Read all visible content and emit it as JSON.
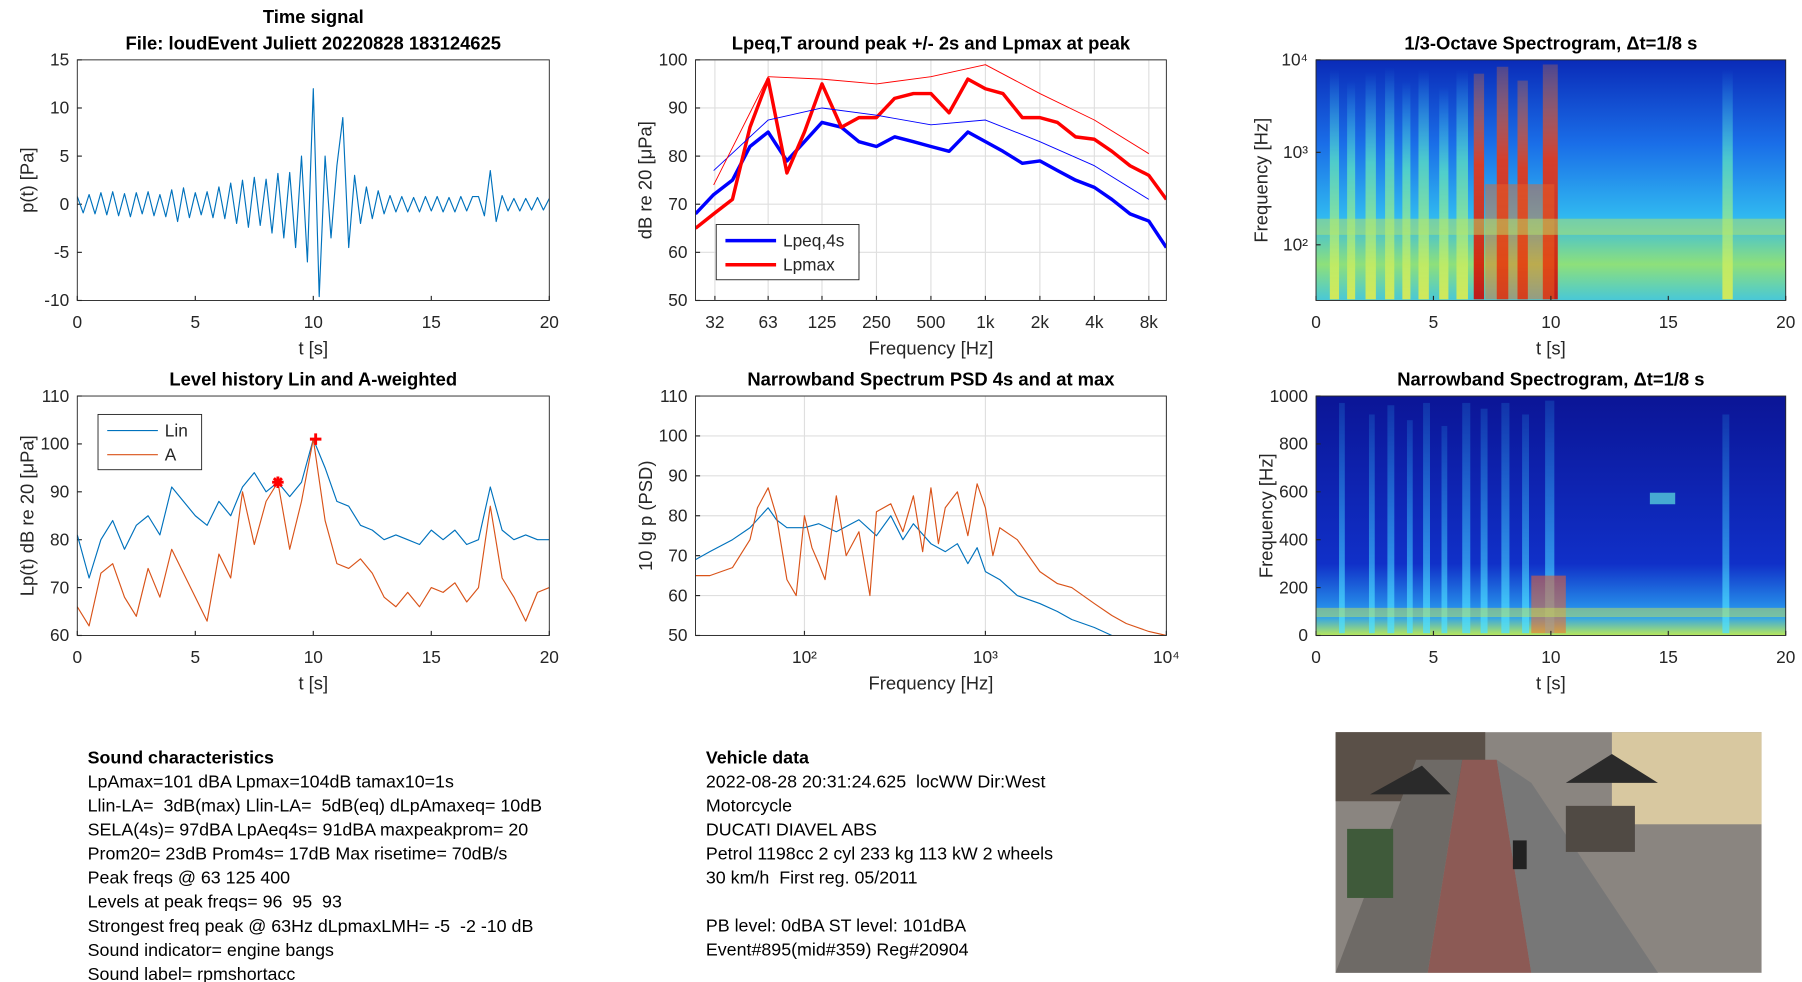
{
  "chart_data": [
    {
      "type": "line",
      "title": "Time signal",
      "subtitle": "File: loudEvent Juliett 20220828 183124625",
      "xlabel": "t [s]",
      "ylabel": "p(t) [Pa]",
      "xlim": [
        0,
        20
      ],
      "ylim": [
        -10,
        15
      ],
      "xticks": [
        0,
        5,
        10,
        15,
        20
      ],
      "yticks": [
        -10,
        -5,
        0,
        5,
        10,
        15
      ],
      "grid": false,
      "x": [
        0,
        0.25,
        0.5,
        0.75,
        1,
        1.25,
        1.5,
        1.75,
        2,
        2.25,
        2.5,
        2.75,
        3,
        3.25,
        3.5,
        3.75,
        4,
        4.25,
        4.5,
        4.75,
        5,
        5.25,
        5.5,
        5.75,
        6,
        6.25,
        6.5,
        6.75,
        7,
        7.25,
        7.5,
        7.75,
        8,
        8.25,
        8.5,
        8.75,
        9,
        9.25,
        9.5,
        9.75,
        10,
        10.25,
        10.5,
        10.75,
        11,
        11.25,
        11.5,
        11.75,
        12,
        12.25,
        12.5,
        12.75,
        13,
        13.25,
        13.5,
        13.75,
        14,
        14.25,
        14.5,
        14.75,
        15,
        15.25,
        15.5,
        15.75,
        16,
        16.25,
        16.5,
        16.75,
        17,
        17.25,
        17.5,
        17.75,
        18,
        18.25,
        18.5,
        18.75,
        19,
        19.25,
        19.5,
        19.75,
        20
      ],
      "series": [
        {
          "color": "#0072bd",
          "linewidth": 1,
          "values": [
            0.8,
            -0.9,
            1,
            -1,
            1.2,
            -1.1,
            1.3,
            -1.2,
            1.1,
            -1.3,
            1.2,
            -1,
            1.3,
            -1.2,
            1,
            -1.3,
            1.5,
            -1.8,
            1.7,
            -1.4,
            1.2,
            -1.1,
            1.3,
            -1.4,
            1.8,
            -1.5,
            2.2,
            -2,
            2.5,
            -2.4,
            2.8,
            -2.2,
            2.6,
            -3,
            3.2,
            -3.5,
            3.3,
            -4.5,
            5,
            -6,
            12,
            -9.6,
            5,
            -3.5,
            4,
            9,
            -4.5,
            3,
            -2,
            1.8,
            -1.5,
            1.4,
            -1,
            0.9,
            -0.8,
            0.8,
            -0.8,
            0.7,
            -0.8,
            0.8,
            -0.7,
            0.8,
            -0.8,
            0.7,
            -0.8,
            0.8,
            -0.7,
            0.8,
            0.8,
            -1.2,
            3.5,
            -1.8,
            0.9,
            -0.7,
            0.6,
            -0.7,
            0.6,
            -0.6,
            0.7,
            -0.6,
            0.6
          ]
        }
      ]
    },
    {
      "type": "line",
      "title": "Lpeq,T around peak +/- 2s and Lpmax at peak",
      "xlabel": "Frequency [Hz]",
      "ylabel": "dB re 20 [μPa]",
      "xscale": "log",
      "xlim": [
        25,
        10000
      ],
      "ylim": [
        50,
        100
      ],
      "xticks": [
        32,
        63,
        125,
        250,
        500,
        {
          "value": 1000,
          "label": "1k"
        },
        {
          "value": 2000,
          "label": "2k"
        },
        {
          "value": 4000,
          "label": "4k"
        },
        {
          "value": 8000,
          "label": "8k"
        }
      ],
      "yticks": [
        50,
        60,
        70,
        80,
        90,
        100
      ],
      "grid": true,
      "legend": "lower left",
      "x": [
        25,
        31.5,
        40,
        50,
        63,
        80,
        100,
        125,
        160,
        200,
        250,
        315,
        400,
        500,
        630,
        800,
        1000,
        1250,
        1600,
        2000,
        2500,
        3150,
        4000,
        5000,
        6300,
        8000,
        10000
      ],
      "series": [
        {
          "name": "Lpeq,4s",
          "color": "#0000ff",
          "linewidth": 3,
          "values": [
            68,
            72,
            75,
            82,
            85,
            79,
            83,
            87,
            86,
            83,
            82,
            84,
            83,
            82,
            81,
            85,
            83,
            81,
            78.5,
            79,
            77,
            75,
            73.5,
            71,
            68,
            66.5,
            61
          ]
        },
        {
          "name": "Lpmax",
          "color": "#ff0000",
          "linewidth": 3,
          "values": [
            65,
            68,
            71,
            86,
            96,
            76.5,
            85,
            95,
            86,
            88,
            88,
            92,
            93,
            93,
            89,
            96,
            94,
            93,
            88,
            88,
            87,
            84,
            83.5,
            81,
            78,
            76,
            71
          ]
        },
        {
          "color": "#0000ff",
          "linewidth": 0.8,
          "x": [
            31.5,
            63,
            125,
            250,
            500,
            1000,
            2000,
            4000,
            8000
          ],
          "values": [
            77,
            87.5,
            90,
            88.5,
            86.5,
            87.5,
            83,
            78,
            71
          ]
        },
        {
          "color": "#ff0000",
          "linewidth": 0.8,
          "x": [
            31.5,
            63,
            125,
            250,
            500,
            1000,
            2000,
            4000,
            8000
          ],
          "values": [
            74,
            96.5,
            96,
            95,
            96.5,
            99,
            93,
            87.5,
            80.5
          ]
        }
      ]
    },
    {
      "type": "spectrogram",
      "title": "1/3-Octave Spectrogram, Δt=1/8 s",
      "xlabel": "t [s]",
      "ylabel": "Frequency [Hz]",
      "yscale": "log",
      "xlim": [
        0,
        20
      ],
      "ylim": [
        25,
        10000
      ],
      "xticks": [
        0,
        5,
        10,
        15,
        20
      ],
      "yticks": [
        {
          "value": 100,
          "label": "10²"
        },
        {
          "value": 1000,
          "label": "10³"
        },
        {
          "value": 10000,
          "label": "10⁴"
        }
      ]
    },
    {
      "type": "line",
      "title": "Level history Lin and A-weighted",
      "xlabel": "t [s]",
      "ylabel": "Lp(t) dB re 20 [μPa]",
      "xlim": [
        0,
        20
      ],
      "ylim": [
        60,
        110
      ],
      "xticks": [
        0,
        5,
        10,
        15,
        20
      ],
      "yticks": [
        60,
        70,
        80,
        90,
        100,
        110
      ],
      "grid": false,
      "legend": "upper left",
      "x": [
        0,
        0.5,
        1,
        1.5,
        2,
        2.5,
        3,
        3.5,
        4,
        4.5,
        5,
        5.5,
        6,
        6.5,
        7,
        7.5,
        8,
        8.5,
        9,
        9.5,
        10,
        10.5,
        11,
        11.5,
        12,
        12.5,
        13,
        13.5,
        14,
        14.5,
        15,
        15.5,
        16,
        16.5,
        17,
        17.5,
        18,
        18.5,
        19,
        19.5,
        20
      ],
      "series": [
        {
          "name": "Lin",
          "color": "#0072bd",
          "linewidth": 1,
          "values": [
            81,
            72,
            80,
            84,
            78,
            83,
            85,
            81,
            91,
            88,
            85,
            83,
            88,
            85,
            91,
            94,
            90,
            92,
            89,
            92,
            101,
            95,
            88,
            87,
            83,
            82,
            80,
            81,
            80,
            79,
            82,
            80,
            82,
            79,
            80,
            91,
            82,
            80,
            81,
            80,
            80
          ]
        },
        {
          "name": "A",
          "color": "#d95319",
          "linewidth": 1,
          "values": [
            66,
            62,
            73,
            75,
            68,
            64,
            74,
            68,
            78,
            73,
            68,
            63,
            77,
            72,
            90,
            79,
            88,
            92,
            78,
            88,
            101,
            84,
            75,
            74,
            76,
            73,
            68,
            66,
            69,
            66,
            70,
            69,
            71,
            67,
            70,
            87,
            72,
            68,
            63,
            69,
            70
          ]
        }
      ],
      "markers": [
        {
          "x": 10.1,
          "y": 101,
          "symbol": "+",
          "color": "#ff0000"
        },
        {
          "x": 8.5,
          "y": 92,
          "symbol": "*",
          "color": "#ff0000"
        }
      ]
    },
    {
      "type": "line",
      "title": "Narrowband Spectrum PSD 4s and at max",
      "xlabel": "Frequency [Hz]",
      "ylabel": "10 lg p (PSD)",
      "xscale": "log",
      "xlim": [
        25,
        10000
      ],
      "ylim": [
        50,
        110
      ],
      "xticks": [
        {
          "value": 100,
          "label": "10²"
        },
        {
          "value": 1000,
          "label": "10³"
        },
        {
          "value": 10000,
          "label": "10⁴"
        }
      ],
      "yticks": [
        50,
        60,
        70,
        80,
        90,
        100,
        110
      ],
      "grid": true,
      "series": [
        {
          "color": "#0072bd",
          "linewidth": 1,
          "x": [
            25,
            30,
            40,
            50,
            63,
            70,
            80,
            100,
            120,
            150,
            200,
            250,
            300,
            350,
            400,
            500,
            600,
            700,
            800,
            900,
            1000,
            1200,
            1500,
            2000,
            2500,
            3000,
            4000,
            5000
          ],
          "values": [
            69,
            71,
            74,
            77,
            82,
            79,
            77,
            77,
            78,
            76,
            79,
            75,
            80,
            74,
            78,
            73,
            71,
            73,
            68,
            72,
            66,
            64,
            60,
            58,
            56,
            54,
            52,
            50
          ]
        },
        {
          "color": "#d95319",
          "linewidth": 1,
          "x": [
            25,
            30,
            40,
            50,
            55,
            63,
            70,
            80,
            90,
            100,
            110,
            120,
            130,
            150,
            170,
            200,
            230,
            250,
            300,
            350,
            400,
            450,
            500,
            550,
            600,
            700,
            800,
            900,
            1000,
            1100,
            1200,
            1500,
            2000,
            2500,
            3000,
            4000,
            5000,
            6000,
            8000,
            10000
          ],
          "values": [
            65,
            65,
            67,
            74,
            82,
            87,
            80,
            64,
            60,
            80,
            72,
            68,
            64,
            85,
            70,
            76,
            60,
            81,
            83,
            76,
            85,
            71,
            87,
            73,
            82,
            86,
            75,
            88,
            82,
            70,
            77,
            74,
            66,
            63,
            62,
            58,
            55,
            53,
            51,
            50
          ]
        }
      ]
    },
    {
      "type": "spectrogram",
      "title": "Narrowband Spectrogram, Δt=1/8 s",
      "xlabel": "t [s]",
      "ylabel": "Frequency [Hz]",
      "xlim": [
        0,
        20
      ],
      "ylim": [
        0,
        1000
      ],
      "xticks": [
        0,
        5,
        10,
        15,
        20
      ],
      "yticks": [
        0,
        200,
        400,
        600,
        800,
        1000
      ]
    }
  ],
  "sound_characteristics": {
    "title": "Sound characteristics",
    "lines": [
      "LpAmax=101 dBA Lpmax=104dB tamax10=1s",
      "Llin-LA=  3dB(max) Llin-LA=  5dB(eq) dLpAmaxeq= 10dB",
      "SELA(4s)= 97dBA LpAeq4s= 91dBA maxpeakprom= 20",
      "Prom20= 23dB Prom4s= 17dB Max risetime= 70dB/s",
      "Peak freqs @ 63 125 400",
      "Levels at peak freqs= 96  95  93",
      "Strongest freq peak @ 63Hz dLpmaxLMH= -5  -2 -10 dB",
      "Sound indicator= engine bangs",
      "Sound label= rpmshortacc"
    ]
  },
  "vehicle_data": {
    "title": "Vehicle data",
    "lines": [
      "2022-08-28 20:31:24.625  locWW Dir:West",
      "Motorcycle",
      "DUCATI DIAVEL ABS",
      "Petrol 1198cc 2 cyl 233 kg 113 kW 2 wheels",
      "30 km/h  First reg. 05/2011"
    ],
    "lines2": [
      "PB level: 0dBA ST level: 101dBA",
      "Event#895(mid#359) Reg#20904"
    ]
  }
}
